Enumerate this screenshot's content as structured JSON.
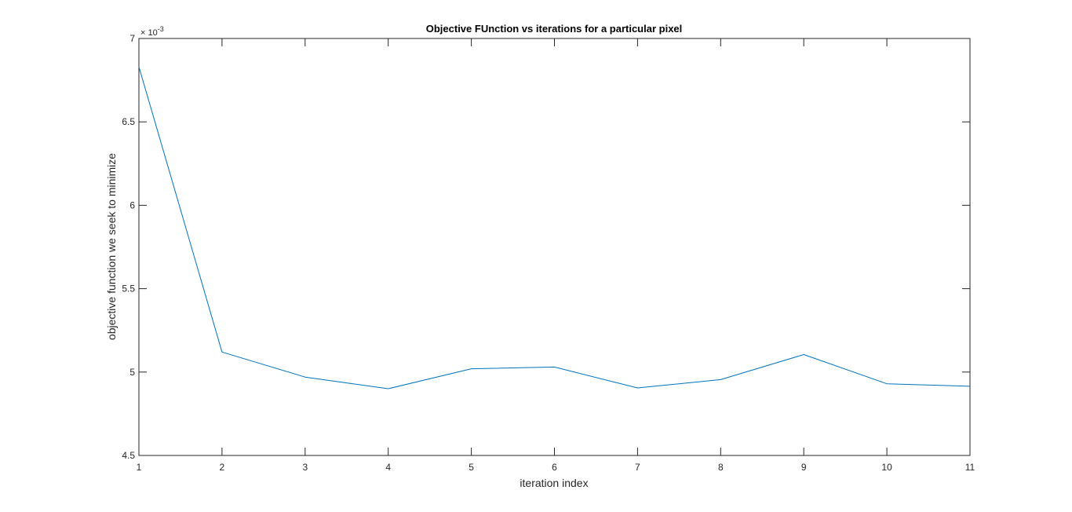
{
  "chart_data": {
    "type": "line",
    "title": "Objective FUnction vs iterations for a particular pixel",
    "xlabel": "iteration index",
    "ylabel": "objective function we seek to minimize",
    "y_exponent_base": "× 10",
    "y_exponent_power": "-3",
    "xlim": [
      1,
      11
    ],
    "ylim": [
      4.5,
      7
    ],
    "x_ticks": [
      1,
      2,
      3,
      4,
      5,
      6,
      7,
      8,
      9,
      10,
      11
    ],
    "y_ticks": [
      4.5,
      5,
      5.5,
      6,
      6.5,
      7
    ],
    "grid": false,
    "series": [
      {
        "x": [
          1,
          2,
          3,
          4,
          5,
          6,
          7,
          8,
          9,
          10,
          11
        ],
        "values": [
          6.83,
          5.12,
          4.97,
          4.9,
          5.02,
          5.03,
          4.905,
          4.955,
          5.105,
          4.93,
          4.915
        ],
        "color": "#0072BD"
      }
    ]
  }
}
